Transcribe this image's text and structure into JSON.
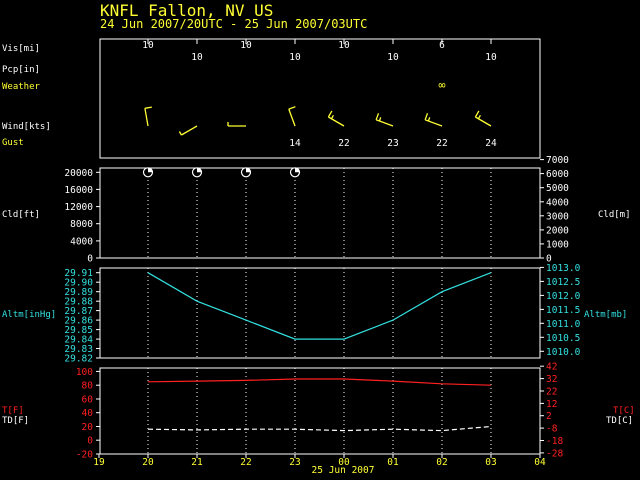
{
  "title": "KNFL  Fallon, NV US",
  "subtitle": "24 Jun 2007/20UTC - 25 Jun 2007/03UTC",
  "colors": {
    "background": "#000000",
    "frame": "#ffffff",
    "yellow": "#ffff33",
    "cyan": "#33e0e0",
    "red": "#ff2020",
    "white": "#ffffff"
  },
  "chart_data": [
    {
      "type": "table",
      "panel": "surface observations",
      "row_labels": {
        "vis": "Vis[mi]",
        "pcp": "Pcp[in]",
        "weather": "Weather",
        "wind": "Wind[kts]",
        "gust": "Gust"
      },
      "x": [
        "20",
        "21",
        "22",
        "23",
        "00",
        "01",
        "02",
        "03"
      ],
      "visibility": [
        {
          "x": "20",
          "text": "10"
        },
        {
          "x": "22",
          "text": "10"
        },
        {
          "x": "00",
          "text": "10"
        },
        {
          "x": "02",
          "text": "6"
        }
      ],
      "visibility_lower": [
        {
          "x": "21",
          "text": "10"
        },
        {
          "x": "23",
          "text": "10"
        },
        {
          "x": "01",
          "text": "10"
        },
        {
          "x": "03",
          "text": "10"
        }
      ],
      "weather": [
        {
          "x": "02",
          "symbol": "haze",
          "text": "∞"
        }
      ],
      "wind_barbs": [
        {
          "x": "20",
          "direction_deg": 350,
          "speed_kts": 10
        },
        {
          "x": "21",
          "direction_deg": 240,
          "speed_kts": 5
        },
        {
          "x": "22",
          "direction_deg": 270,
          "speed_kts": 5
        },
        {
          "x": "23",
          "direction_deg": 340,
          "speed_kts": 10
        },
        {
          "x": "00",
          "direction_deg": 300,
          "speed_kts": 15
        },
        {
          "x": "01",
          "direction_deg": 290,
          "speed_kts": 15
        },
        {
          "x": "02",
          "direction_deg": 290,
          "speed_kts": 15
        },
        {
          "x": "03",
          "direction_deg": 300,
          "speed_kts": 15
        }
      ],
      "gusts": [
        {
          "x": "23",
          "text": "14"
        },
        {
          "x": "00",
          "text": "22"
        },
        {
          "x": "01",
          "text": "23"
        },
        {
          "x": "02",
          "text": "22"
        },
        {
          "x": "03",
          "text": "24"
        }
      ]
    },
    {
      "type": "scatter",
      "panel": "cloud",
      "ylabel": "Cld[ft]",
      "y2label": "Cld[m]",
      "ylim": [
        0,
        21000
      ],
      "y_ticks": [
        "0",
        "4000",
        "8000",
        "12000",
        "16000",
        "20000"
      ],
      "y2lim": [
        0,
        6400.8
      ],
      "y2_ticks": [
        "0",
        "1000",
        "2000",
        "3000",
        "4000",
        "5000",
        "6000",
        "7000"
      ],
      "points": [
        {
          "x": "20",
          "y": 20000,
          "cover": "few"
        },
        {
          "x": "21",
          "y": 20000,
          "cover": "few"
        },
        {
          "x": "22",
          "y": 20000,
          "cover": "few"
        },
        {
          "x": "23",
          "y": 20000,
          "cover": "few"
        }
      ]
    },
    {
      "type": "line",
      "panel": "altimeter",
      "ylabel": "Altm[inHg]",
      "y2label": "Altm[mb]",
      "ylim": [
        29.82,
        29.915
      ],
      "y_ticks": [
        "29.82",
        "29.83",
        "29.84",
        "29.85",
        "29.86",
        "29.87",
        "29.88",
        "29.89",
        "29.90",
        "29.91"
      ],
      "y2lim": [
        1009.76,
        1012.98
      ],
      "y2_ticks": [
        "1010.0",
        "1010.5",
        "1011.0",
        "1011.5",
        "1012.0",
        "1012.5",
        "1013.0"
      ],
      "x": [
        "20",
        "21",
        "22",
        "23",
        "00",
        "01",
        "02",
        "03"
      ],
      "series": [
        {
          "values": [
            29.91,
            29.88,
            29.86,
            29.84,
            29.84,
            29.86,
            29.89,
            29.91
          ]
        }
      ]
    },
    {
      "type": "line",
      "panel": "temperature",
      "ylabel": "T[F]",
      "ylabel2": "TD[F]",
      "y2label": "T[C]",
      "y2label2": "TD[C]",
      "ylim": [
        -20,
        105
      ],
      "y_ticks": [
        "-20",
        "0",
        "20",
        "40",
        "60",
        "80",
        "100"
      ],
      "y2lim": [
        -28.89,
        40.56
      ],
      "y2_ticks": [
        "-28",
        "-18",
        "-8",
        "2",
        "12",
        "22",
        "32",
        "42"
      ],
      "x_ticks": [
        "19",
        "20",
        "21",
        "22",
        "23",
        "00",
        "01",
        "02",
        "03",
        "04"
      ],
      "xlabel": "25 Jun 2007",
      "series": [
        {
          "name": "T[F]",
          "values": [
            85,
            86,
            87,
            89,
            89,
            86,
            82,
            80
          ]
        },
        {
          "name": "TD[F]",
          "values": [
            16,
            15,
            16,
            16,
            14,
            16,
            14,
            20
          ]
        }
      ]
    }
  ]
}
